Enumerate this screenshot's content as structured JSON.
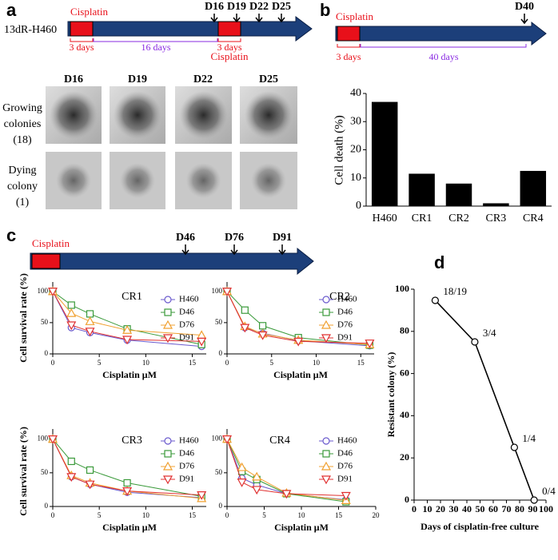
{
  "panel_a": {
    "letter": "a",
    "timeline_label": "13dR-H460",
    "cisplatin_labels": [
      "Cisplatin",
      "Cisplatin"
    ],
    "durations": [
      "3 days",
      "16 days",
      "3 days"
    ],
    "days": [
      "D16",
      "D19",
      "D22",
      "D25"
    ],
    "image_columns": [
      "D16",
      "D19",
      "D22",
      "D25"
    ],
    "image_rows": [
      [
        "Growing",
        "colonies",
        "(18)"
      ],
      [
        "Dying",
        "colony",
        "(1)"
      ]
    ]
  },
  "panel_b": {
    "letter": "b",
    "cisplatin_label": "Cisplatin",
    "durations": [
      "3 days",
      "40 days"
    ],
    "days": [
      "D40"
    ]
  },
  "panel_c": {
    "letter": "c",
    "cisplatin_label": "Cisplatin",
    "days": [
      "D46",
      "D76",
      "D91"
    ]
  },
  "panel_d": {
    "letter": "d"
  },
  "chart_data": [
    {
      "type": "bar",
      "y_label": "Cell death (%)",
      "categories": [
        "H460",
        "CR1",
        "CR2",
        "CR3",
        "CR4"
      ],
      "values": [
        37,
        11.5,
        8,
        1,
        12.5
      ],
      "color": "#000000",
      "ylim": [
        0,
        40
      ],
      "yticks": [
        0,
        10,
        20,
        30,
        40
      ]
    },
    {
      "type": "line",
      "title": "CR1",
      "x_label": "Cisplatin μM",
      "y_label": "Cell survival rate (%)",
      "legend": true,
      "x": [
        0,
        2,
        4,
        8,
        16
      ],
      "xlim": [
        0,
        16.5
      ],
      "xticks": [
        0,
        5,
        10,
        15
      ],
      "ylim": [
        0,
        115
      ],
      "yticks": [
        0,
        50,
        100
      ],
      "series": [
        {
          "name": "H460",
          "color": "#6a5acd",
          "marker": "circle",
          "values": [
            100,
            42,
            34,
            22,
            12
          ]
        },
        {
          "name": "D46",
          "color": "#3a9a3a",
          "marker": "square",
          "values": [
            100,
            78,
            64,
            40,
            15
          ]
        },
        {
          "name": "D76",
          "color": "#f0a030",
          "marker": "triangle-up",
          "values": [
            100,
            65,
            52,
            38,
            30
          ]
        },
        {
          "name": "D91",
          "color": "#e03030",
          "marker": "triangle-down",
          "values": [
            100,
            46,
            36,
            23,
            20
          ]
        }
      ]
    },
    {
      "type": "line",
      "title": "CR2",
      "x_label": "Cisplatin μM",
      "legend": true,
      "x": [
        0,
        2,
        4,
        8,
        16
      ],
      "xlim": [
        0,
        16.5
      ],
      "xticks": [
        0,
        5,
        10,
        15
      ],
      "ylim": [
        0,
        115
      ],
      "yticks": [
        0,
        50,
        100
      ],
      "series": [
        {
          "name": "H460",
          "color": "#6a5acd",
          "marker": "circle",
          "values": [
            100,
            42,
            33,
            21,
            13
          ]
        },
        {
          "name": "D46",
          "color": "#3a9a3a",
          "marker": "square",
          "values": [
            100,
            70,
            45,
            26,
            14
          ]
        },
        {
          "name": "D76",
          "color": "#f0a030",
          "marker": "triangle-up",
          "values": [
            100,
            44,
            32,
            22,
            15
          ]
        },
        {
          "name": "D91",
          "color": "#e03030",
          "marker": "triangle-down",
          "values": [
            100,
            42,
            30,
            20,
            17
          ]
        }
      ]
    },
    {
      "type": "line",
      "title": "CR3",
      "x_label": "Cisplatin μM",
      "y_label": "Cell survival rate (%)",
      "legend": true,
      "x": [
        0,
        2,
        4,
        8,
        16
      ],
      "xlim": [
        0,
        16.5
      ],
      "xticks": [
        0,
        5,
        10,
        15
      ],
      "ylim": [
        0,
        115
      ],
      "yticks": [
        0,
        50,
        100
      ],
      "series": [
        {
          "name": "H460",
          "color": "#6a5acd",
          "marker": "circle",
          "values": [
            100,
            44,
            33,
            21,
            13
          ]
        },
        {
          "name": "D46",
          "color": "#3a9a3a",
          "marker": "square",
          "values": [
            100,
            67,
            54,
            35,
            15
          ]
        },
        {
          "name": "D76",
          "color": "#f0a030",
          "marker": "triangle-up",
          "values": [
            100,
            46,
            35,
            23,
            12
          ]
        },
        {
          "name": "D91",
          "color": "#e03030",
          "marker": "triangle-down",
          "values": [
            100,
            44,
            33,
            23,
            17
          ]
        }
      ]
    },
    {
      "type": "line",
      "title": "CR4",
      "x_label": "Cisplatin μM",
      "legend": true,
      "x": [
        0,
        2,
        4,
        8,
        16
      ],
      "xlim": [
        0,
        20
      ],
      "xticks": [
        0,
        5,
        10,
        15,
        20
      ],
      "ylim": [
        0,
        115
      ],
      "yticks": [
        0,
        50,
        100
      ],
      "series": [
        {
          "name": "H460",
          "color": "#6a5acd",
          "marker": "circle",
          "values": [
            100,
            42,
            32,
            19,
            10
          ]
        },
        {
          "name": "D46",
          "color": "#3a9a3a",
          "marker": "square",
          "values": [
            100,
            52,
            40,
            19,
            7
          ]
        },
        {
          "name": "D76",
          "color": "#f0a030",
          "marker": "triangle-up",
          "values": [
            100,
            58,
            44,
            20,
            9
          ]
        },
        {
          "name": "D91",
          "color": "#e03030",
          "marker": "triangle-down",
          "values": [
            100,
            36,
            25,
            19,
            16
          ]
        }
      ]
    },
    {
      "type": "line",
      "x_label": "Days of cisplatin-free culture",
      "y_label": "Resistant colony (%)",
      "x": [
        16,
        46,
        76,
        91
      ],
      "xlim": [
        0,
        100
      ],
      "xticks": [
        0,
        10,
        20,
        30,
        40,
        50,
        60,
        70,
        80,
        90,
        100
      ],
      "ylim": [
        0,
        100
      ],
      "yticks": [
        0,
        20,
        40,
        60,
        80,
        100
      ],
      "series": [
        {
          "color": "#000000",
          "marker": "circle",
          "values": [
            94.7,
            75,
            25,
            0
          ],
          "point_labels": [
            "18/19",
            "3/4",
            "1/4",
            "0/4"
          ]
        }
      ]
    }
  ]
}
